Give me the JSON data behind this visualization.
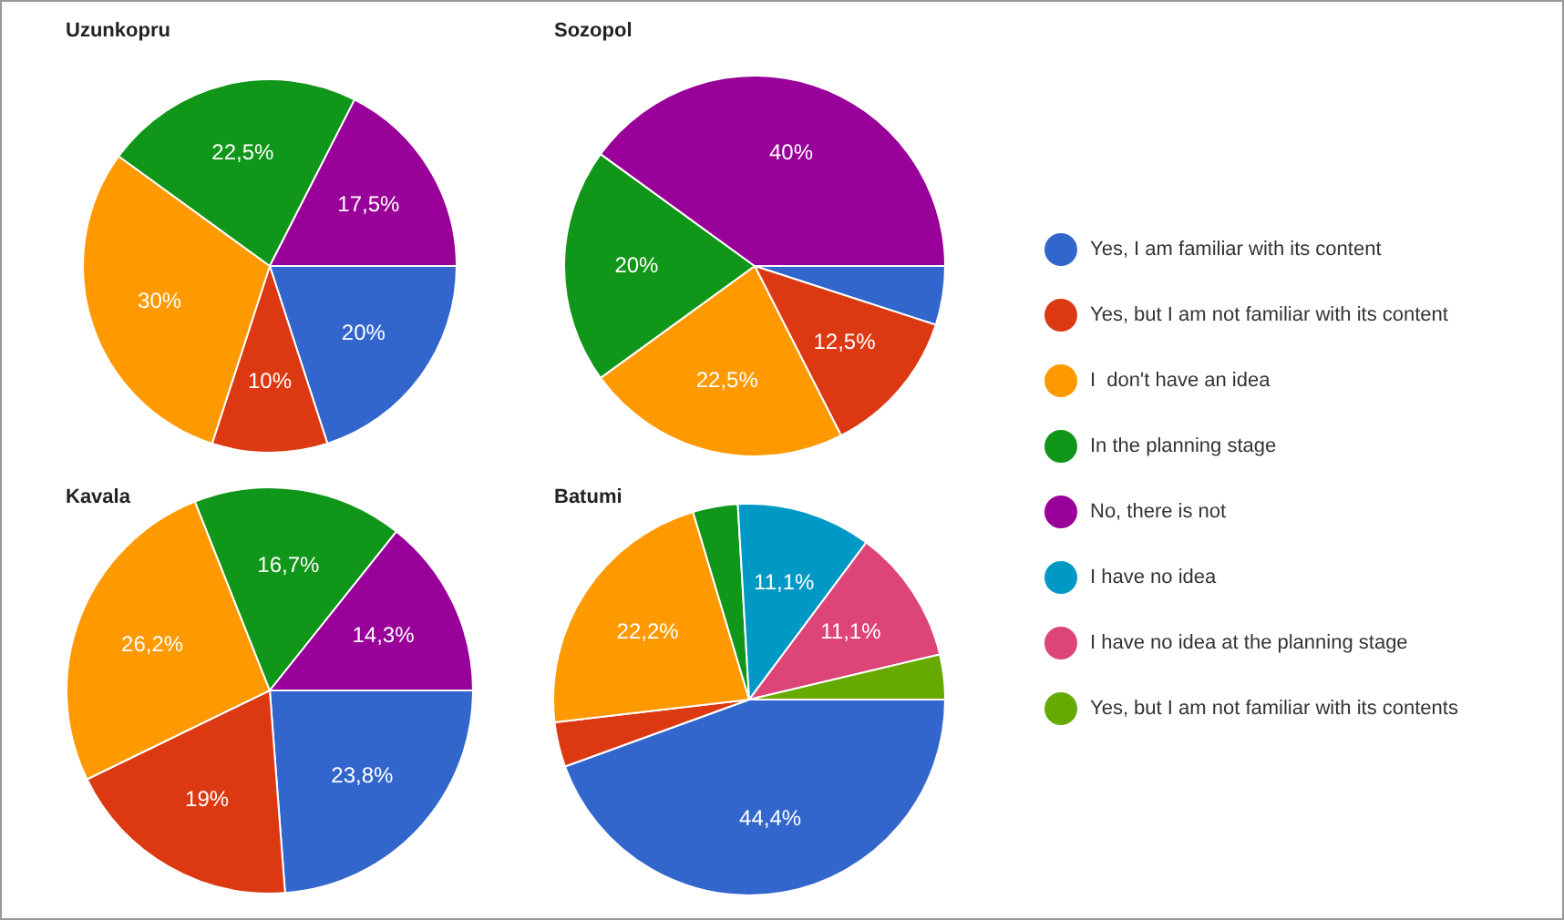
{
  "chart_data": [
    {
      "type": "pie",
      "title": "Uzunkopru",
      "categories": [
        null,
        null,
        null,
        null,
        null
      ],
      "values": [
        20,
        10,
        30,
        22.5,
        17.5
      ],
      "value_labels": [
        "20%",
        "10%",
        "30%",
        "22,5%",
        "17,5%"
      ],
      "colors": [
        "#3366cc",
        "#dc3912",
        "#ff9900",
        "#109618",
        "#990099"
      ]
    },
    {
      "type": "pie",
      "title": "Sozopol",
      "categories": [
        "Yes, I am familiar with its content",
        "Yes, but I am not familiar with its content",
        "I  don't have an idea",
        "In the planning stage",
        "No, there is not",
        "I have no idea",
        "I have no idea at the planning stage",
        "Yes, but I am not familiar with its contents"
      ],
      "values": [
        5,
        12.5,
        22.5,
        20,
        40,
        0,
        0,
        0
      ],
      "value_labels": [
        null,
        "12,5%",
        "22,5%",
        "20%",
        "40%",
        null,
        null,
        null
      ],
      "colors": [
        "#3366cc",
        "#dc3912",
        "#ff9900",
        "#109618",
        "#990099",
        "#0099c6",
        "#dd4477",
        "#66aa00"
      ],
      "legend": "right"
    },
    {
      "type": "pie",
      "title": "Kavala",
      "categories": [
        null,
        null,
        null,
        null,
        null
      ],
      "values": [
        23.8,
        19,
        26.2,
        16.7,
        14.3
      ],
      "value_labels": [
        "23,8%",
        "19%",
        "26,2%",
        "16,7%",
        "14,3%"
      ],
      "colors": [
        "#3366cc",
        "#dc3912",
        "#ff9900",
        "#109618",
        "#990099"
      ]
    },
    {
      "type": "pie",
      "title": "Batumi",
      "categories": [
        null,
        null,
        null,
        null,
        null,
        null,
        null
      ],
      "values": [
        44.4,
        3.7,
        22.2,
        3.7,
        11.1,
        11.1,
        3.7
      ],
      "value_labels": [
        "44,4%",
        null,
        "22,2%",
        null,
        "11,1%",
        "11,1%",
        null
      ],
      "colors": [
        "#3366cc",
        "#dc3912",
        "#ff9900",
        "#109618",
        "#0099c6",
        "#dd4477",
        "#66aa00"
      ]
    }
  ]
}
